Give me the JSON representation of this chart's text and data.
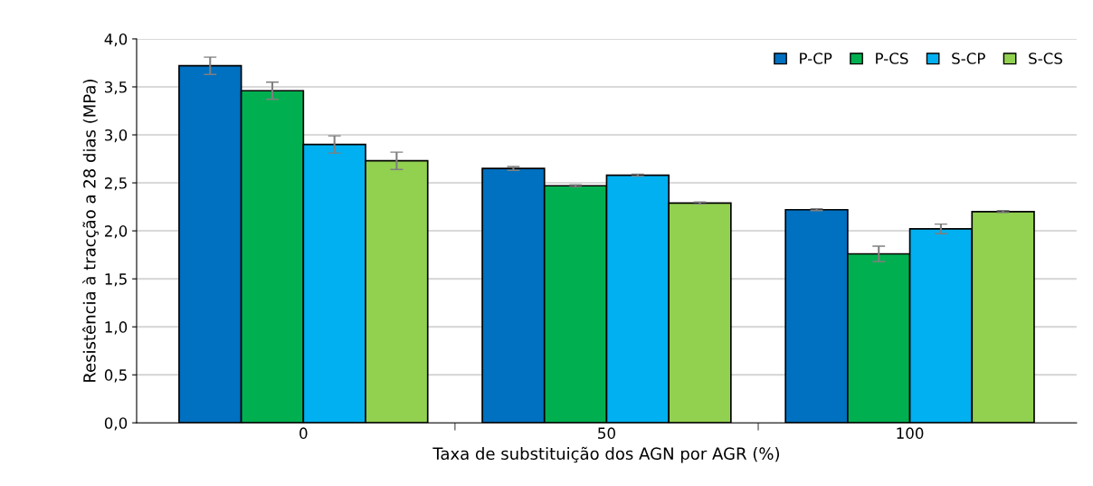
{
  "chart_data": {
    "type": "bar",
    "xlabel": "Taxa de substituição dos AGN por AGR (%)",
    "ylabel": "Resistência à tracção a 28 dias (MPa)",
    "categories": [
      "0",
      "50",
      "100"
    ],
    "series": [
      {
        "name": "P-CP",
        "color": "#0070c0",
        "values": [
          3.72,
          2.65,
          2.22
        ],
        "errors": [
          0.09,
          0.02,
          0.01
        ]
      },
      {
        "name": "P-CS",
        "color": "#00b050",
        "values": [
          3.46,
          2.47,
          1.76
        ],
        "errors": [
          0.09,
          0.01,
          0.08
        ]
      },
      {
        "name": "S-CP",
        "color": "#00b0f0",
        "values": [
          2.9,
          2.58,
          2.02
        ],
        "errors": [
          0.09,
          0.01,
          0.05
        ]
      },
      {
        "name": "S-CS",
        "color": "#92d050",
        "values": [
          2.73,
          2.29,
          2.2
        ],
        "errors": [
          0.09,
          0.01,
          0.01
        ]
      }
    ],
    "ylim": [
      0,
      4
    ],
    "yticks": [
      {
        "value": 0,
        "label": "0,0"
      },
      {
        "value": 0.5,
        "label": "0,5"
      },
      {
        "value": 1,
        "label": "1,0"
      },
      {
        "value": 1.5,
        "label": "1,5"
      },
      {
        "value": 2,
        "label": "2,0"
      },
      {
        "value": 2.5,
        "label": "2,5"
      },
      {
        "value": 3,
        "label": "3,0"
      },
      {
        "value": 3.5,
        "label": "3,5"
      },
      {
        "value": 4,
        "label": "4,0"
      }
    ],
    "grid": "y",
    "legend": "top right"
  }
}
